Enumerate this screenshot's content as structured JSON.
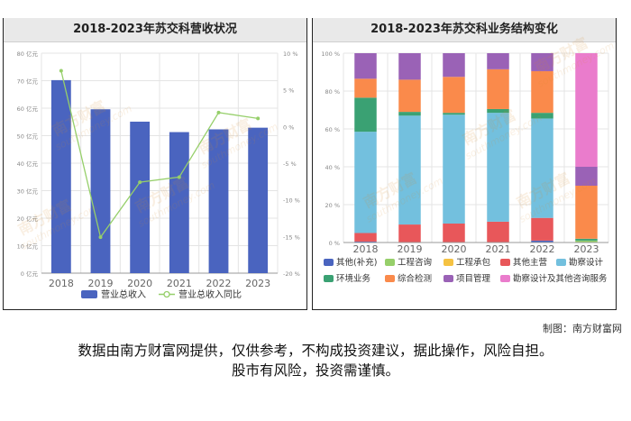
{
  "chart_data": [
    {
      "type": "bar",
      "title": "2018-2023年苏交科营收状况",
      "categories": [
        "2018",
        "2019",
        "2020",
        "2021",
        "2022",
        "2023"
      ],
      "series": [
        {
          "name": "营业总收入",
          "type": "bar",
          "axis": "left",
          "color": "#4a64bf",
          "values": [
            70.2,
            59.6,
            55.1,
            51.3,
            52.3,
            52.9
          ]
        },
        {
          "name": "营业总收入同比",
          "type": "line",
          "axis": "right",
          "color": "#96cf6a",
          "values": [
            7.6,
            -15.1,
            -7.6,
            -6.9,
            1.9,
            1.1
          ]
        }
      ],
      "left_axis": {
        "ylim": [
          0,
          80
        ],
        "ticks": [
          "0 亿元",
          "10 亿元",
          "20 亿元",
          "30 亿元",
          "40 亿元",
          "50 亿元",
          "60 亿元",
          "70 亿元",
          "80 亿元"
        ]
      },
      "right_axis": {
        "ylim": [
          -20,
          10
        ],
        "ticks": [
          "-20 %",
          "-15 %",
          "-10 %",
          "-5 %",
          "0 %",
          "5 %",
          "10 %"
        ]
      },
      "grid": true,
      "legend": "bottom"
    },
    {
      "type": "bar",
      "stacked": true,
      "title": "2018-2023年苏交科业务结构变化",
      "categories": [
        "2018",
        "2019",
        "2020",
        "2021",
        "2022",
        "2023"
      ],
      "series": [
        {
          "name": "其他(补充)",
          "color": "#4a64bf",
          "values": [
            0.5,
            0,
            0,
            0,
            1,
            0
          ]
        },
        {
          "name": "工程咨询",
          "color": "#96cf6a",
          "values": [
            0,
            0,
            0,
            0,
            0,
            1
          ]
        },
        {
          "name": "工程承包",
          "color": "#f5c242",
          "values": [
            0,
            0,
            0,
            0,
            0,
            0
          ]
        },
        {
          "name": "其他主营",
          "color": "#e8575a",
          "values": [
            4.5,
            9.5,
            10,
            11,
            12,
            0
          ]
        },
        {
          "name": "勘察设计",
          "color": "#73c0de",
          "values": [
            53.5,
            57.5,
            57.5,
            57.5,
            52.5,
            0
          ]
        },
        {
          "name": "环境业务",
          "color": "#3aa173",
          "values": [
            18,
            2,
            1,
            2,
            3,
            1
          ]
        },
        {
          "name": "综合检测",
          "color": "#fa8a4b",
          "values": [
            10,
            17,
            19,
            21,
            22,
            28
          ]
        },
        {
          "name": "项目管理",
          "color": "#9a62b6",
          "values": [
            13.5,
            14,
            12.5,
            8.5,
            9.5,
            10
          ]
        },
        {
          "name": "勘察设计及其他咨询服务",
          "color": "#ea7ccc",
          "values": [
            0,
            0,
            0,
            0,
            0,
            60
          ]
        }
      ],
      "y_axis": {
        "ylim": [
          0,
          100
        ],
        "ticks": [
          "0 %",
          "20 %",
          "40 %",
          "60 %",
          "80 %",
          "100 %"
        ]
      },
      "grid": true,
      "legend": "bottom"
    }
  ],
  "watermark": {
    "brand_cn": "南方财富",
    "brand_en": "southmoney.com"
  },
  "credit": "制图：南方财富网",
  "disclaimer": {
    "line1": "数据由南方财富网提供，仅供参考，不构成投资建议，据此操作，风险自担。",
    "line2": "股市有风险，投资需谨慎。"
  }
}
